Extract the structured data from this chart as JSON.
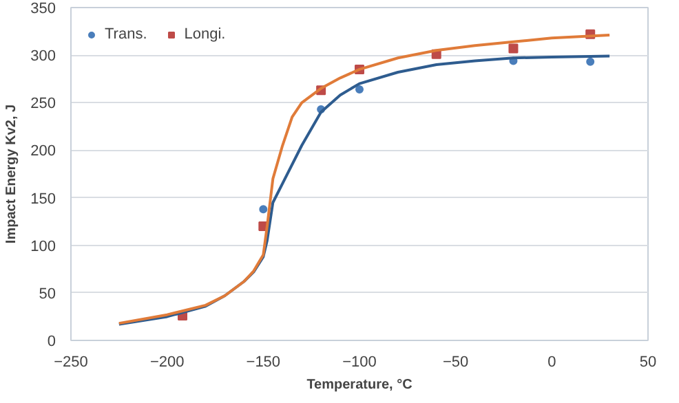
{
  "chart_data": {
    "type": "scatter",
    "xlabel": "Temperature, °C",
    "ylabel": "Impact Energy Kv2, J",
    "xlim": [
      -250,
      50
    ],
    "ylim": [
      0,
      350
    ],
    "xticks": [
      -250,
      -200,
      -150,
      -100,
      -50,
      0,
      50
    ],
    "yticks": [
      0,
      50,
      100,
      150,
      200,
      250,
      300,
      350
    ],
    "grid": "y",
    "legend": "top left",
    "series": [
      {
        "name": "Trans.",
        "color": "#4a7ebb",
        "marker": "circle",
        "x": [
          -150,
          -120,
          -100,
          -20,
          20
        ],
        "values": [
          138,
          243,
          264,
          294,
          293
        ]
      },
      {
        "name": "Longi.",
        "color": "#be4b48",
        "marker": "square",
        "x": [
          -192,
          -150,
          -120,
          -100,
          -60,
          -20,
          20
        ],
        "values": [
          26,
          120,
          263,
          285,
          301,
          307,
          322
        ]
      },
      {
        "type": "line",
        "color": "#2e5c8f",
        "x": [
          -225,
          -200,
          -180,
          -170,
          -160,
          -155,
          -150,
          -148,
          -145,
          -140,
          -130,
          -120,
          -110,
          -100,
          -80,
          -60,
          -40,
          -20,
          0,
          30
        ],
        "values": [
          17,
          25,
          36,
          47,
          62,
          72,
          88,
          105,
          145,
          165,
          205,
          240,
          258,
          270,
          282,
          290,
          294,
          297,
          298,
          299
        ]
      },
      {
        "type": "line",
        "color": "#e07b39",
        "x": [
          -225,
          -200,
          -180,
          -170,
          -160,
          -155,
          -150,
          -148,
          -145,
          -140,
          -135,
          -130,
          -120,
          -110,
          -100,
          -80,
          -60,
          -40,
          -20,
          0,
          30
        ],
        "values": [
          18,
          27,
          37,
          47,
          62,
          73,
          90,
          120,
          170,
          205,
          235,
          250,
          265,
          276,
          285,
          297,
          305,
          310,
          314,
          318,
          321
        ]
      }
    ]
  }
}
